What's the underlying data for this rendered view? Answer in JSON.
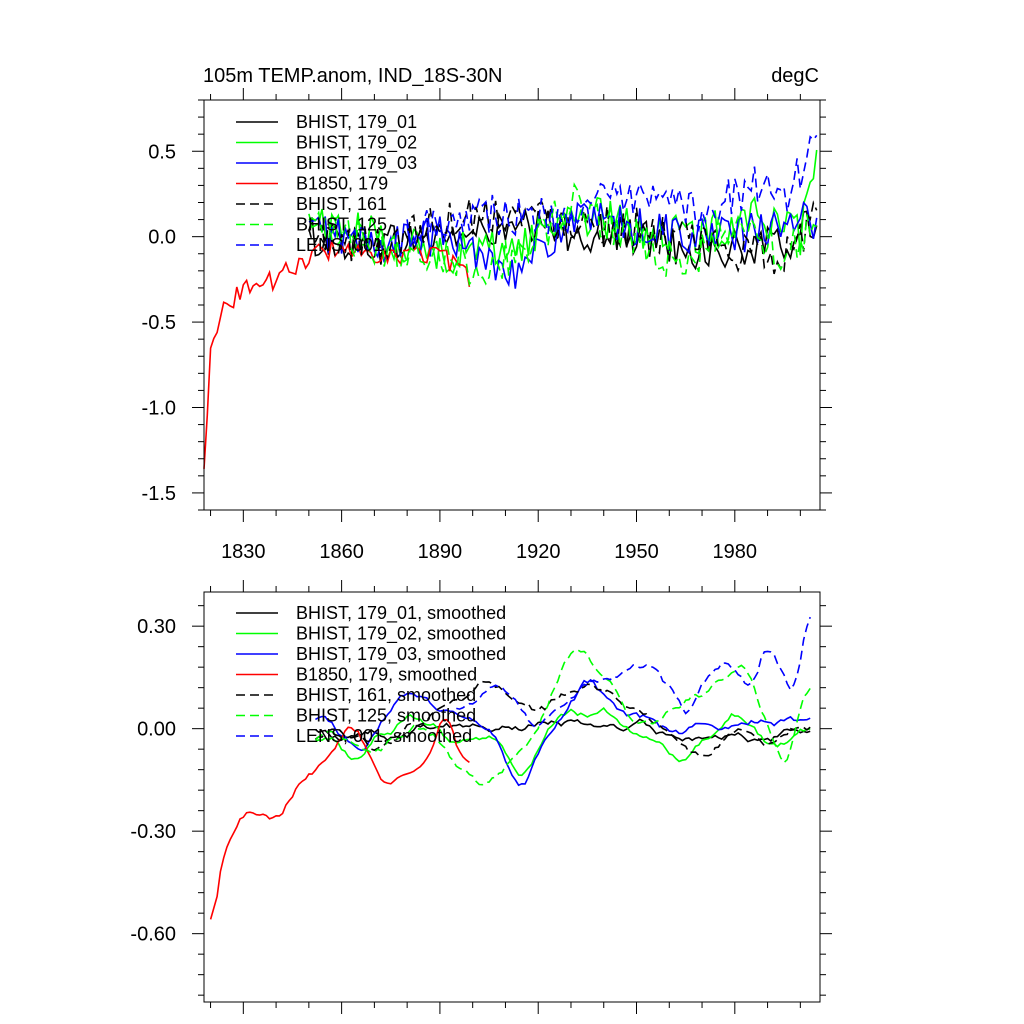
{
  "chart_data": [
    {
      "type": "line",
      "title": "105m TEMP.anom, IND_18S-30N",
      "units": "degC",
      "xlim": [
        1818,
        2006
      ],
      "ylim": [
        -1.6,
        0.8
      ],
      "x_ticks": [
        1830,
        1860,
        1890,
        1920,
        1950,
        1980
      ],
      "x_tick_labels": [
        "1830",
        "1860",
        "1890",
        "1920",
        "1950",
        "1980"
      ],
      "y_ticks": [
        -1.5,
        -1.0,
        -0.5,
        0.0,
        0.5
      ],
      "y_tick_labels": [
        "-1.5",
        "-1.0",
        "-0.5",
        "0.0",
        "0.5"
      ],
      "legend": "top-left",
      "series": [
        {
          "name": "BHIST, 179_01",
          "color": "#000000",
          "dash": "solid",
          "x_start": 1850,
          "x_end": 2005,
          "anchors": [
            [
              1850,
              0.0
            ],
            [
              1870,
              -0.05
            ],
            [
              1890,
              0.0
            ],
            [
              1920,
              0.05
            ],
            [
              1950,
              0.0
            ],
            [
              1975,
              -0.1
            ],
            [
              1995,
              -0.05
            ],
            [
              2005,
              0.1
            ]
          ]
        },
        {
          "name": "BHIST, 179_02",
          "color": "#00ff00",
          "dash": "solid",
          "x_start": 1850,
          "x_end": 2005,
          "anchors": [
            [
              1850,
              0.1
            ],
            [
              1870,
              0.0
            ],
            [
              1890,
              -0.1
            ],
            [
              1915,
              -0.05
            ],
            [
              1930,
              0.15
            ],
            [
              1950,
              0.05
            ],
            [
              1970,
              0.0
            ],
            [
              1985,
              0.15
            ],
            [
              2000,
              0.0
            ],
            [
              2005,
              0.4
            ]
          ]
        },
        {
          "name": "BHIST, 179_03",
          "color": "#0000ff",
          "dash": "solid",
          "x_start": 1850,
          "x_end": 2005,
          "anchors": [
            [
              1850,
              0.05
            ],
            [
              1870,
              -0.05
            ],
            [
              1890,
              0.0
            ],
            [
              1915,
              -0.2
            ],
            [
              1930,
              0.1
            ],
            [
              1950,
              0.05
            ],
            [
              1975,
              0.0
            ],
            [
              1995,
              0.05
            ],
            [
              2005,
              0.1
            ]
          ]
        },
        {
          "name": "B1850, 179",
          "color": "#ff0000",
          "dash": "solid",
          "x_start": 1818,
          "x_end": 1899,
          "anchors": [
            [
              1818,
              -1.38
            ],
            [
              1820,
              -0.6
            ],
            [
              1825,
              -0.4
            ],
            [
              1830,
              -0.3
            ],
            [
              1840,
              -0.25
            ],
            [
              1850,
              -0.12
            ],
            [
              1860,
              -0.05
            ],
            [
              1870,
              -0.15
            ],
            [
              1880,
              -0.1
            ],
            [
              1890,
              -0.1
            ],
            [
              1899,
              -0.25
            ]
          ]
        },
        {
          "name": "BHIST, 161",
          "color": "#000000",
          "dash": "dashed",
          "x_start": 1850,
          "x_end": 2005,
          "anchors": [
            [
              1850,
              0.0
            ],
            [
              1870,
              -0.05
            ],
            [
              1890,
              0.1
            ],
            [
              1910,
              0.15
            ],
            [
              1930,
              0.1
            ],
            [
              1950,
              0.05
            ],
            [
              1970,
              -0.05
            ],
            [
              1985,
              -0.1
            ],
            [
              1995,
              -0.1
            ],
            [
              2005,
              0.1
            ]
          ]
        },
        {
          "name": "BHIST, 125",
          "color": "#00ff00",
          "dash": "dashed",
          "x_start": 1850,
          "x_end": 2005,
          "anchors": [
            [
              1850,
              0.05
            ],
            [
              1870,
              -0.05
            ],
            [
              1890,
              -0.1
            ],
            [
              1905,
              -0.2
            ],
            [
              1920,
              0.0
            ],
            [
              1930,
              0.2
            ],
            [
              1950,
              0.0
            ],
            [
              1965,
              -0.2
            ],
            [
              1980,
              0.1
            ],
            [
              1995,
              -0.1
            ],
            [
              2005,
              0.1
            ]
          ]
        },
        {
          "name": "LENS, 001",
          "color": "#0000ff",
          "dash": "dashed",
          "x_start": 1880,
          "x_end": 2005,
          "anchors": [
            [
              1880,
              0.05
            ],
            [
              1900,
              0.15
            ],
            [
              1920,
              0.1
            ],
            [
              1935,
              0.2
            ],
            [
              1955,
              0.2
            ],
            [
              1970,
              0.15
            ],
            [
              1985,
              0.3
            ],
            [
              1995,
              0.2
            ],
            [
              2005,
              0.6
            ]
          ]
        }
      ]
    },
    {
      "type": "line",
      "xlim": [
        1818,
        2006
      ],
      "ylim": [
        -0.8,
        0.4
      ],
      "x_ticks": [
        1830,
        1860,
        1890,
        1920,
        1950,
        1980
      ],
      "y_ticks": [
        -0.6,
        -0.3,
        0.0,
        0.3
      ],
      "y_tick_labels": [
        "-0.60",
        "-0.30",
        "0.00",
        "0.30"
      ],
      "legend": "top-left",
      "series": [
        {
          "name": "BHIST, 179_01, smoothed",
          "color": "#000000",
          "dash": "solid",
          "x_start": 1852,
          "x_end": 2003,
          "anchors": [
            [
              1852,
              0.0
            ],
            [
              1870,
              -0.03
            ],
            [
              1890,
              0.02
            ],
            [
              1910,
              0.0
            ],
            [
              1930,
              0.02
            ],
            [
              1950,
              0.0
            ],
            [
              1970,
              -0.02
            ],
            [
              1990,
              -0.03
            ],
            [
              2003,
              0.02
            ]
          ]
        },
        {
          "name": "BHIST, 179_02, smoothed",
          "color": "#00ff00",
          "dash": "solid",
          "x_start": 1852,
          "x_end": 2003,
          "anchors": [
            [
              1852,
              0.0
            ],
            [
              1865,
              -0.08
            ],
            [
              1880,
              0.05
            ],
            [
              1895,
              -0.05
            ],
            [
              1905,
              0.0
            ],
            [
              1915,
              -0.14
            ],
            [
              1928,
              0.05
            ],
            [
              1940,
              0.05
            ],
            [
              1955,
              -0.05
            ],
            [
              1965,
              -0.08
            ],
            [
              1980,
              0.05
            ],
            [
              1990,
              -0.05
            ],
            [
              2003,
              0.0
            ]
          ]
        },
        {
          "name": "BHIST, 179_03, smoothed",
          "color": "#0000ff",
          "dash": "solid",
          "x_start": 1852,
          "x_end": 2003,
          "anchors": [
            [
              1852,
              0.05
            ],
            [
              1865,
              -0.06
            ],
            [
              1880,
              0.1
            ],
            [
              1895,
              0.05
            ],
            [
              1905,
              0.0
            ],
            [
              1915,
              -0.18
            ],
            [
              1925,
              0.0
            ],
            [
              1935,
              0.15
            ],
            [
              1945,
              0.05
            ],
            [
              1960,
              0.0
            ],
            [
              1975,
              0.0
            ],
            [
              1990,
              0.02
            ],
            [
              2003,
              0.05
            ]
          ]
        },
        {
          "name": "B1850, 179, smoothed",
          "color": "#ff0000",
          "dash": "solid",
          "x_start": 1820,
          "x_end": 1899,
          "anchors": [
            [
              1820,
              -0.67
            ],
            [
              1822,
              -0.45
            ],
            [
              1825,
              -0.32
            ],
            [
              1830,
              -0.25
            ],
            [
              1840,
              -0.27
            ],
            [
              1845,
              -0.2
            ],
            [
              1850,
              -0.12
            ],
            [
              1858,
              -0.06
            ],
            [
              1863,
              0.02
            ],
            [
              1867,
              -0.05
            ],
            [
              1872,
              -0.16
            ],
            [
              1880,
              -0.12
            ],
            [
              1888,
              -0.06
            ],
            [
              1892,
              0.06
            ],
            [
              1899,
              -0.13
            ]
          ]
        },
        {
          "name": "BHIST, 161, smoothed",
          "color": "#000000",
          "dash": "dashed",
          "x_start": 1852,
          "x_end": 2003,
          "anchors": [
            [
              1852,
              0.0
            ],
            [
              1870,
              -0.05
            ],
            [
              1885,
              0.0
            ],
            [
              1905,
              0.15
            ],
            [
              1920,
              0.05
            ],
            [
              1935,
              0.15
            ],
            [
              1950,
              0.05
            ],
            [
              1960,
              0.0
            ],
            [
              1970,
              -0.1
            ],
            [
              1980,
              0.0
            ],
            [
              1990,
              -0.05
            ],
            [
              2003,
              0.02
            ]
          ]
        },
        {
          "name": "BHIST, 125, smoothed",
          "color": "#00ff00",
          "dash": "dashed",
          "x_start": 1852,
          "x_end": 2003,
          "anchors": [
            [
              1852,
              -0.02
            ],
            [
              1870,
              -0.05
            ],
            [
              1885,
              0.0
            ],
            [
              1895,
              -0.1
            ],
            [
              1905,
              -0.18
            ],
            [
              1920,
              0.0
            ],
            [
              1930,
              0.25
            ],
            [
              1940,
              0.15
            ],
            [
              1950,
              0.0
            ],
            [
              1960,
              0.05
            ],
            [
              1970,
              0.1
            ],
            [
              1983,
              0.2
            ],
            [
              1995,
              -0.12
            ],
            [
              2003,
              0.16
            ]
          ]
        },
        {
          "name": "LENS, 001, smoothed",
          "color": "#0000ff",
          "dash": "dashed",
          "x_start": 1895,
          "x_end": 2003,
          "anchors": [
            [
              1895,
              0.05
            ],
            [
              1910,
              0.12
            ],
            [
              1920,
              0.0
            ],
            [
              1930,
              0.1
            ],
            [
              1940,
              0.15
            ],
            [
              1955,
              0.2
            ],
            [
              1965,
              0.05
            ],
            [
              1978,
              0.2
            ],
            [
              1985,
              0.1
            ],
            [
              1990,
              0.27
            ],
            [
              1998,
              0.06
            ],
            [
              2003,
              0.38
            ]
          ]
        }
      ]
    }
  ]
}
